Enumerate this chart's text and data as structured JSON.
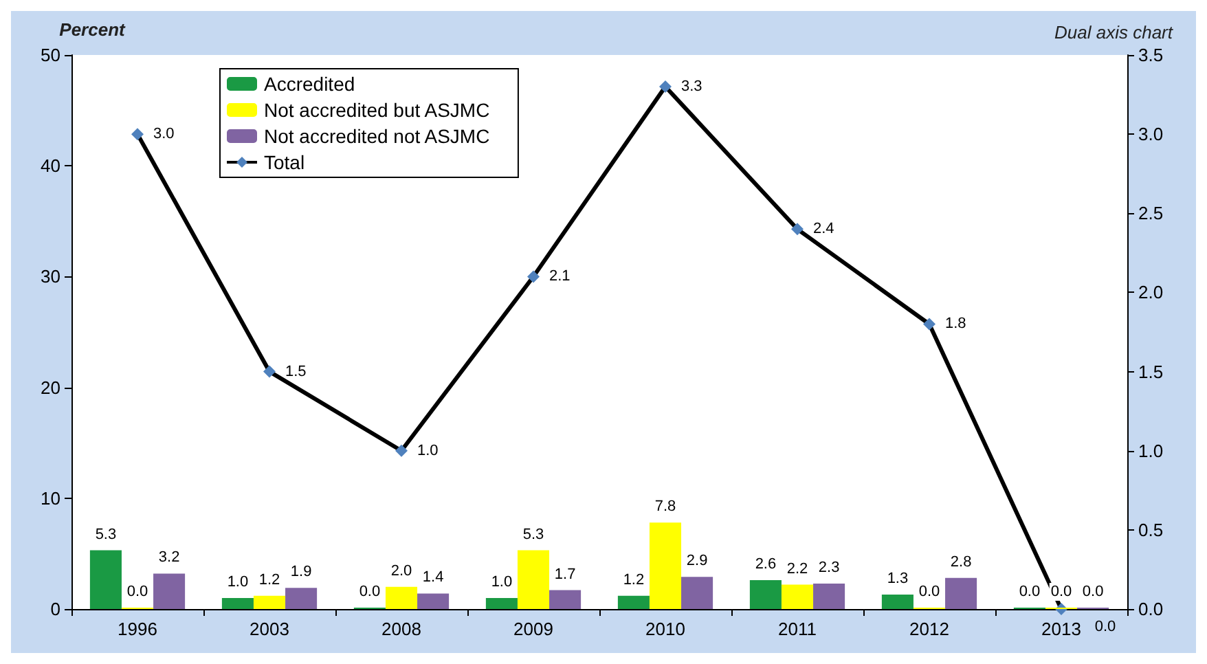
{
  "chart_data": {
    "type": "bar",
    "title": "Dual axis chart",
    "ylabel": "Percent",
    "categories": [
      "1996",
      "2003",
      "2008",
      "2009",
      "2010",
      "2011",
      "2012",
      "2013"
    ],
    "series": [
      {
        "name": "Accredited",
        "color": "#1a9a44",
        "values": [
          5.3,
          1.0,
          0.0,
          1.0,
          1.2,
          2.6,
          1.3,
          0.0
        ],
        "value_labels": [
          "5.3",
          "1.0",
          "0.0",
          "1.0",
          "1.2",
          "2.6",
          "1.3",
          "0.0"
        ]
      },
      {
        "name": "Not accredited but ASJMC",
        "color": "#ffff00",
        "values": [
          0.0,
          1.2,
          2.0,
          5.3,
          7.8,
          2.2,
          0.0,
          0.0
        ],
        "value_labels": [
          "0.0",
          "1.2",
          "2.0",
          "5.3",
          "7.8",
          "2.2",
          "0.0",
          "0.0"
        ]
      },
      {
        "name": "Not accredited not ASJMC",
        "color": "#8064a2",
        "values": [
          3.2,
          1.9,
          1.4,
          1.7,
          2.9,
          2.3,
          2.8,
          0.0
        ],
        "value_labels": [
          "3.2",
          "1.9",
          "1.4",
          "1.7",
          "2.9",
          "2.3",
          "2.8",
          "0.0"
        ]
      },
      {
        "name": "Total",
        "type": "line",
        "axis": "y2",
        "color": "#000000",
        "marker": "diamond",
        "values": [
          3.0,
          1.5,
          1.0,
          2.1,
          3.3,
          2.4,
          1.8,
          0.0
        ],
        "value_labels": [
          "3.0",
          "1.5",
          "1.0",
          "2.1",
          "3.3",
          "2.4",
          "1.8",
          "0.0"
        ]
      }
    ],
    "ylim": [
      0,
      50
    ],
    "yticks": [
      0,
      10,
      20,
      30,
      40,
      50
    ],
    "y2lim": [
      0,
      3.5
    ],
    "y2ticks": [
      {
        "value": 0,
        "label": "0.0"
      },
      {
        "value": 0.5,
        "label": "0.5"
      },
      {
        "value": 1,
        "label": "1.0"
      },
      {
        "value": 1.5,
        "label": "1.5"
      },
      {
        "value": 2,
        "label": "2.0"
      },
      {
        "value": 2.5,
        "label": "2.5"
      },
      {
        "value": 3,
        "label": "3.0"
      },
      {
        "value": 3.5,
        "label": "3.5"
      }
    ],
    "grid": false,
    "legend": "top left"
  }
}
